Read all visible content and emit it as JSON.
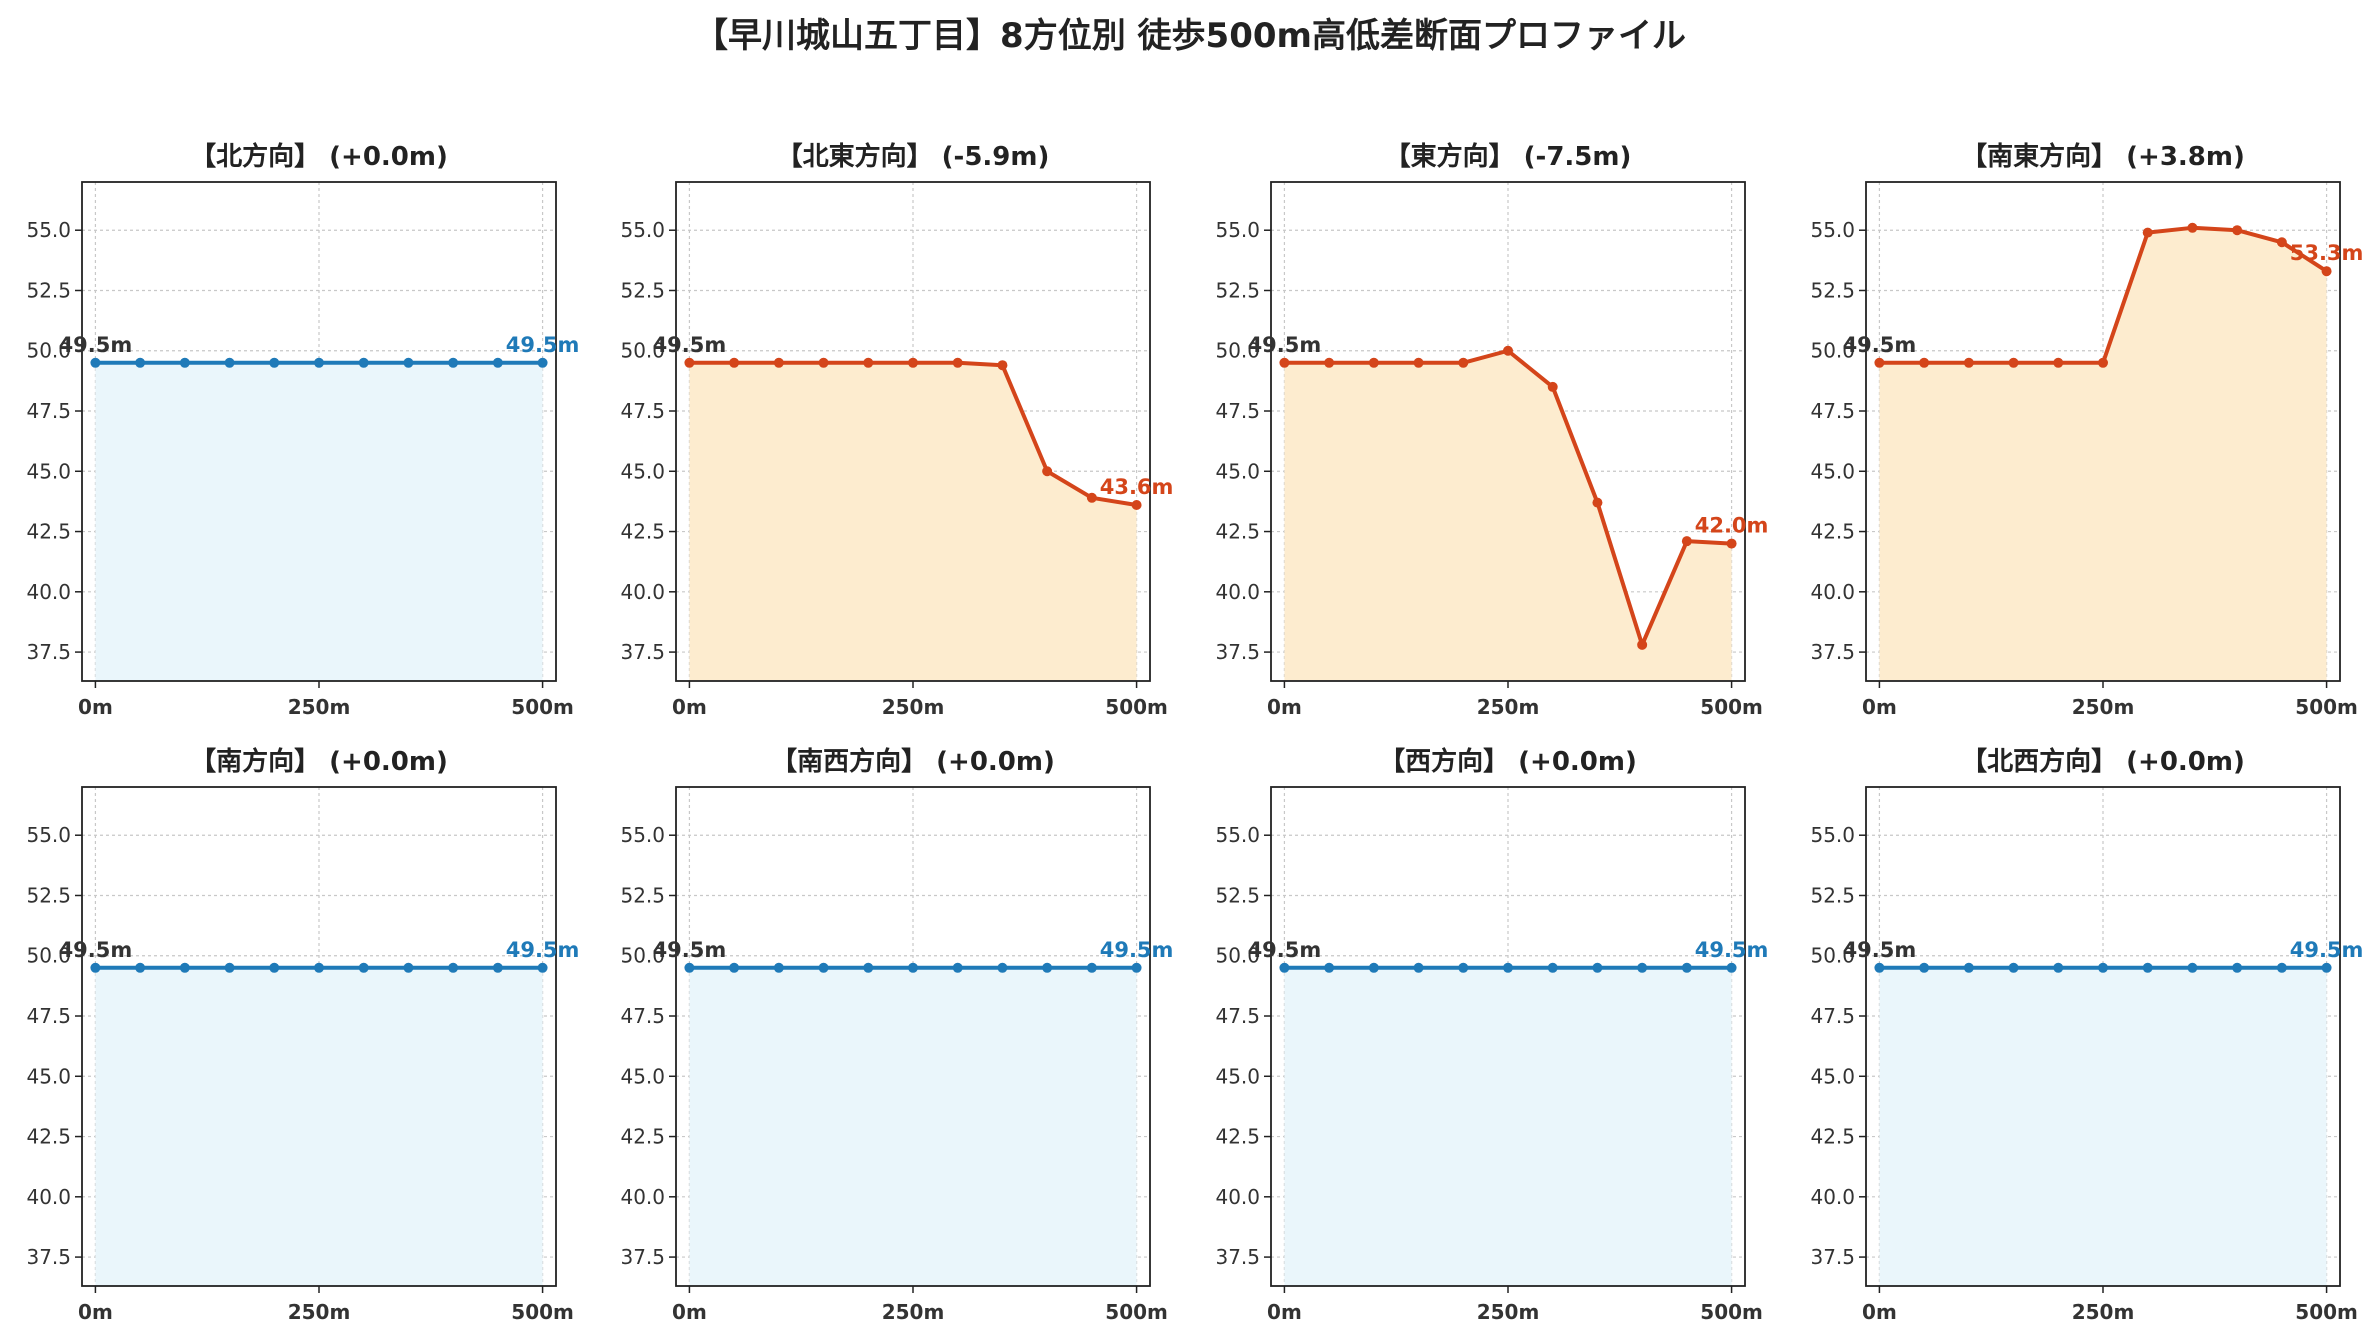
{
  "title": "【早川城山五丁目】8方位別 徒歩500m高低差断面プロファイル",
  "colors": {
    "flat_line": "#1f7ab8",
    "flat_fill": "#eaf6fb",
    "change_line": "#d4451a",
    "change_fill": "#fdeccf",
    "start_label": "#333333",
    "grid": "#c8c8c8"
  },
  "chart_data": [
    {
      "type": "line",
      "title": "【北方向】 (+0.0m)",
      "x": [
        0,
        50,
        100,
        150,
        200,
        250,
        300,
        350,
        400,
        450,
        500
      ],
      "y": [
        49.5,
        49.5,
        49.5,
        49.5,
        49.5,
        49.5,
        49.5,
        49.5,
        49.5,
        49.5,
        49.5
      ],
      "start_label": "49.5m",
      "end_label": "49.5m",
      "trend": "flat",
      "ylim": [
        36.3,
        57.0
      ],
      "xlim": [
        -15,
        515
      ],
      "yticks": [
        37.5,
        40.0,
        42.5,
        45.0,
        47.5,
        50.0,
        52.5,
        55.0
      ],
      "ytick_labels": [
        "37.5",
        "40.0",
        "42.5",
        "45.0",
        "47.5",
        "50.0",
        "52.5",
        "55.0"
      ],
      "xticks": [
        0,
        250,
        500
      ],
      "xtick_labels": [
        "0m",
        "250m",
        "500m"
      ],
      "grid": true
    },
    {
      "type": "line",
      "title": "【北東方向】 (-5.9m)",
      "x": [
        0,
        50,
        100,
        150,
        200,
        250,
        300,
        350,
        400,
        450,
        500
      ],
      "y": [
        49.5,
        49.5,
        49.5,
        49.5,
        49.5,
        49.5,
        49.5,
        49.4,
        45.0,
        43.9,
        43.6
      ],
      "start_label": "49.5m",
      "end_label": "43.6m",
      "trend": "change",
      "ylim": [
        36.3,
        57.0
      ],
      "xlim": [
        -15,
        515
      ],
      "yticks": [
        37.5,
        40.0,
        42.5,
        45.0,
        47.5,
        50.0,
        52.5,
        55.0
      ],
      "ytick_labels": [
        "37.5",
        "40.0",
        "42.5",
        "45.0",
        "47.5",
        "50.0",
        "52.5",
        "55.0"
      ],
      "xticks": [
        0,
        250,
        500
      ],
      "xtick_labels": [
        "0m",
        "250m",
        "500m"
      ],
      "grid": true
    },
    {
      "type": "line",
      "title": "【東方向】 (-7.5m)",
      "x": [
        0,
        50,
        100,
        150,
        200,
        250,
        300,
        350,
        400,
        450,
        500
      ],
      "y": [
        49.5,
        49.5,
        49.5,
        49.5,
        49.5,
        50.0,
        48.5,
        43.7,
        37.8,
        42.1,
        42.0
      ],
      "start_label": "49.5m",
      "end_label": "42.0m",
      "trend": "change",
      "ylim": [
        36.3,
        57.0
      ],
      "xlim": [
        -15,
        515
      ],
      "yticks": [
        37.5,
        40.0,
        42.5,
        45.0,
        47.5,
        50.0,
        52.5,
        55.0
      ],
      "ytick_labels": [
        "37.5",
        "40.0",
        "42.5",
        "45.0",
        "47.5",
        "50.0",
        "52.5",
        "55.0"
      ],
      "xticks": [
        0,
        250,
        500
      ],
      "xtick_labels": [
        "0m",
        "250m",
        "500m"
      ],
      "grid": true
    },
    {
      "type": "line",
      "title": "【南東方向】 (+3.8m)",
      "x": [
        0,
        50,
        100,
        150,
        200,
        250,
        300,
        350,
        400,
        450,
        500
      ],
      "y": [
        49.5,
        49.5,
        49.5,
        49.5,
        49.5,
        49.5,
        54.9,
        55.1,
        55.0,
        54.5,
        53.3
      ],
      "start_label": "49.5m",
      "end_label": "53.3m",
      "trend": "change",
      "ylim": [
        36.3,
        57.0
      ],
      "xlim": [
        -15,
        515
      ],
      "yticks": [
        37.5,
        40.0,
        42.5,
        45.0,
        47.5,
        50.0,
        52.5,
        55.0
      ],
      "ytick_labels": [
        "37.5",
        "40.0",
        "42.5",
        "45.0",
        "47.5",
        "50.0",
        "52.5",
        "55.0"
      ],
      "xticks": [
        0,
        250,
        500
      ],
      "xtick_labels": [
        "0m",
        "250m",
        "500m"
      ],
      "grid": true
    },
    {
      "type": "line",
      "title": "【南方向】 (+0.0m)",
      "x": [
        0,
        50,
        100,
        150,
        200,
        250,
        300,
        350,
        400,
        450,
        500
      ],
      "y": [
        49.5,
        49.5,
        49.5,
        49.5,
        49.5,
        49.5,
        49.5,
        49.5,
        49.5,
        49.5,
        49.5
      ],
      "start_label": "49.5m",
      "end_label": "49.5m",
      "trend": "flat",
      "ylim": [
        36.3,
        57.0
      ],
      "xlim": [
        -15,
        515
      ],
      "yticks": [
        37.5,
        40.0,
        42.5,
        45.0,
        47.5,
        50.0,
        52.5,
        55.0
      ],
      "ytick_labels": [
        "37.5",
        "40.0",
        "42.5",
        "45.0",
        "47.5",
        "50.0",
        "52.5",
        "55.0"
      ],
      "xticks": [
        0,
        250,
        500
      ],
      "xtick_labels": [
        "0m",
        "250m",
        "500m"
      ],
      "grid": true
    },
    {
      "type": "line",
      "title": "【南西方向】 (+0.0m)",
      "x": [
        0,
        50,
        100,
        150,
        200,
        250,
        300,
        350,
        400,
        450,
        500
      ],
      "y": [
        49.5,
        49.5,
        49.5,
        49.5,
        49.5,
        49.5,
        49.5,
        49.5,
        49.5,
        49.5,
        49.5
      ],
      "start_label": "49.5m",
      "end_label": "49.5m",
      "trend": "flat",
      "ylim": [
        36.3,
        57.0
      ],
      "xlim": [
        -15,
        515
      ],
      "yticks": [
        37.5,
        40.0,
        42.5,
        45.0,
        47.5,
        50.0,
        52.5,
        55.0
      ],
      "ytick_labels": [
        "37.5",
        "40.0",
        "42.5",
        "45.0",
        "47.5",
        "50.0",
        "52.5",
        "55.0"
      ],
      "xticks": [
        0,
        250,
        500
      ],
      "xtick_labels": [
        "0m",
        "250m",
        "500m"
      ],
      "grid": true
    },
    {
      "type": "line",
      "title": "【西方向】 (+0.0m)",
      "x": [
        0,
        50,
        100,
        150,
        200,
        250,
        300,
        350,
        400,
        450,
        500
      ],
      "y": [
        49.5,
        49.5,
        49.5,
        49.5,
        49.5,
        49.5,
        49.5,
        49.5,
        49.5,
        49.5,
        49.5
      ],
      "start_label": "49.5m",
      "end_label": "49.5m",
      "trend": "flat",
      "ylim": [
        36.3,
        57.0
      ],
      "xlim": [
        -15,
        515
      ],
      "yticks": [
        37.5,
        40.0,
        42.5,
        45.0,
        47.5,
        50.0,
        52.5,
        55.0
      ],
      "ytick_labels": [
        "37.5",
        "40.0",
        "42.5",
        "45.0",
        "47.5",
        "50.0",
        "52.5",
        "55.0"
      ],
      "xticks": [
        0,
        250,
        500
      ],
      "xtick_labels": [
        "0m",
        "250m",
        "500m"
      ],
      "grid": true
    },
    {
      "type": "line",
      "title": "【北西方向】 (+0.0m)",
      "x": [
        0,
        50,
        100,
        150,
        200,
        250,
        300,
        350,
        400,
        450,
        500
      ],
      "y": [
        49.5,
        49.5,
        49.5,
        49.5,
        49.5,
        49.5,
        49.5,
        49.5,
        49.5,
        49.5,
        49.5
      ],
      "start_label": "49.5m",
      "end_label": "49.5m",
      "trend": "flat",
      "ylim": [
        36.3,
        57.0
      ],
      "xlim": [
        -15,
        515
      ],
      "yticks": [
        37.5,
        40.0,
        42.5,
        45.0,
        47.5,
        50.0,
        52.5,
        55.0
      ],
      "ytick_labels": [
        "37.5",
        "40.0",
        "42.5",
        "45.0",
        "47.5",
        "50.0",
        "52.5",
        "55.0"
      ],
      "xticks": [
        0,
        250,
        500
      ],
      "xtick_labels": [
        "0m",
        "250m",
        "500m"
      ],
      "grid": true
    }
  ]
}
